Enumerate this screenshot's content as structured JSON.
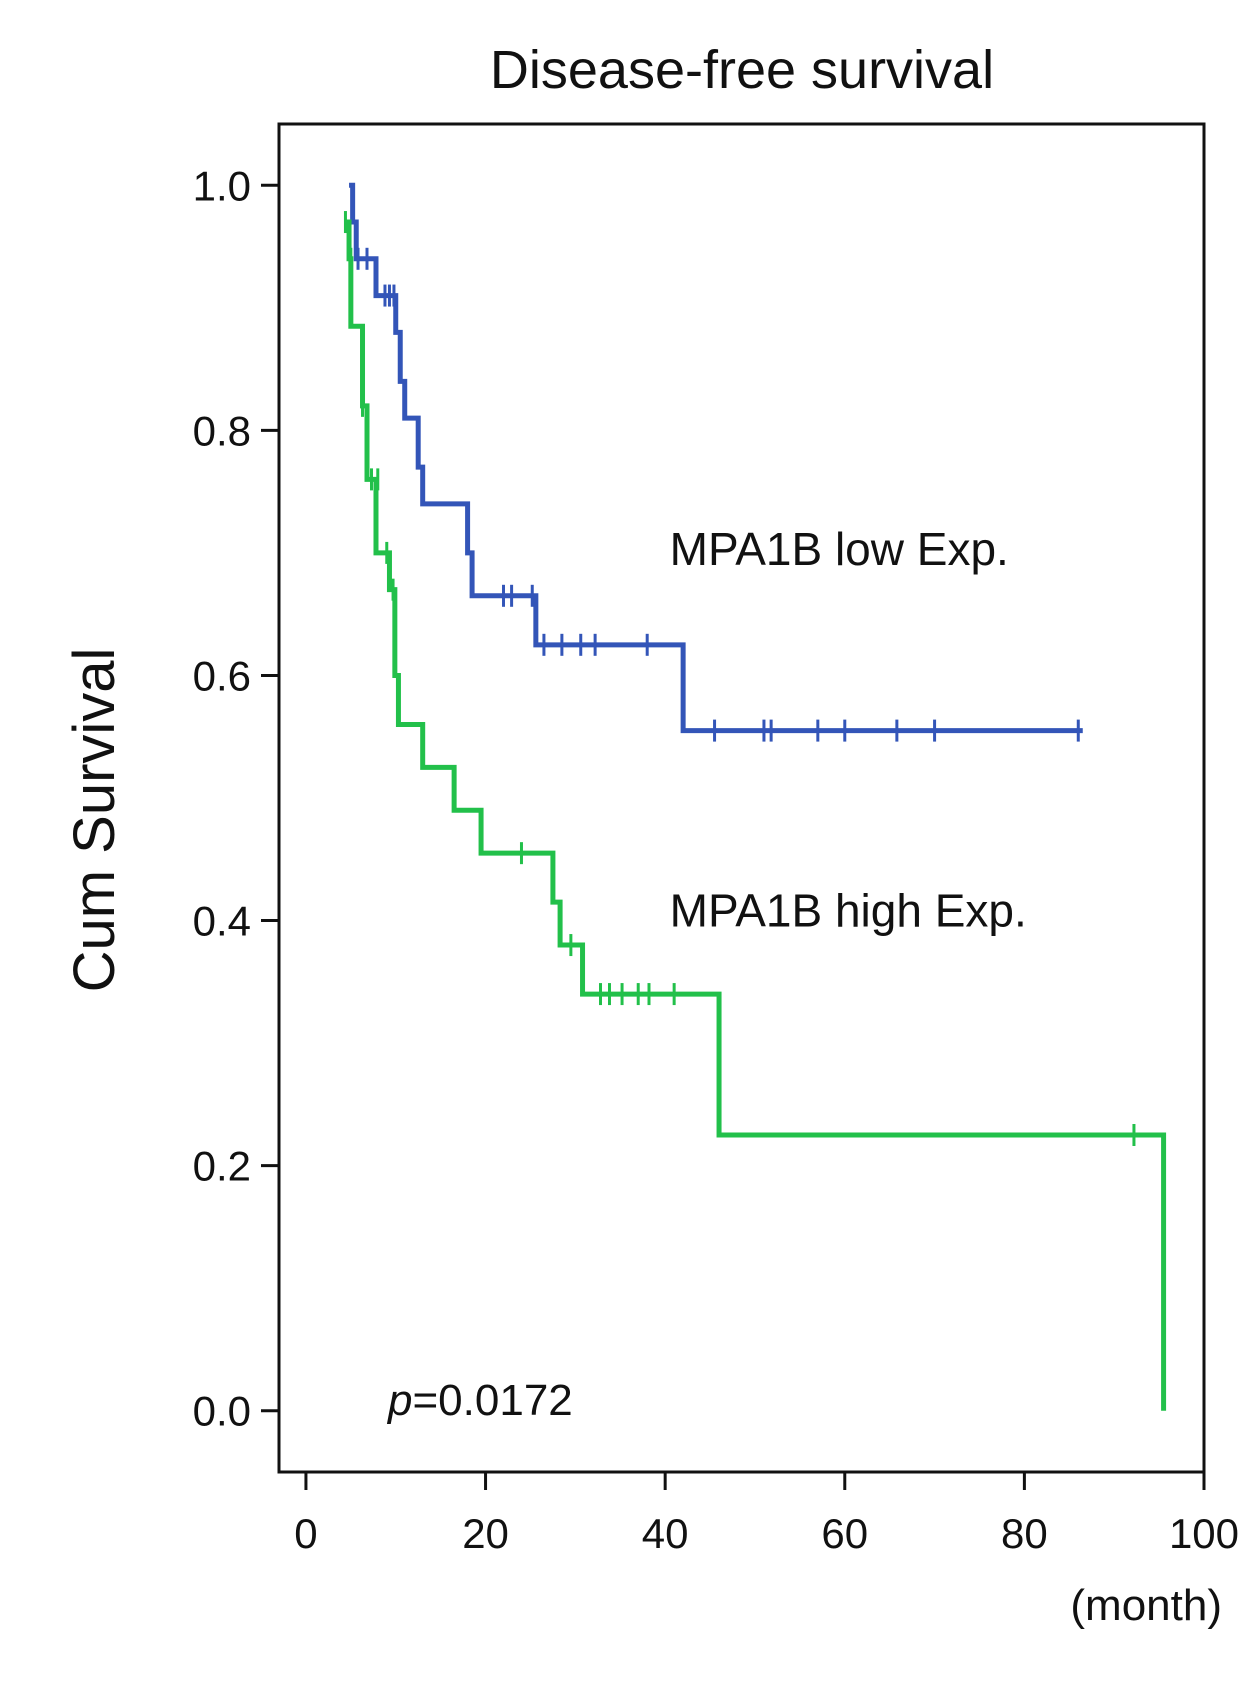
{
  "chart_data": {
    "type": "line",
    "title": "Disease-free survival",
    "ylabel": "Cum Survival",
    "xlabel": "(month)",
    "xlim": [
      -3,
      100
    ],
    "ylim": [
      -0.05,
      1.05
    ],
    "xticks": [
      0,
      20,
      40,
      60,
      80,
      100
    ],
    "xtick_labels": [
      "0",
      "20",
      "40",
      "60",
      "80",
      "100"
    ],
    "yticks": [
      0.0,
      0.2,
      0.4,
      0.6,
      0.8,
      1.0
    ],
    "ytick_labels": [
      "0.0",
      "0.2",
      "0.4",
      "0.6",
      "0.8",
      "1.0"
    ],
    "grid": false,
    "annotation": {
      "p_symbol": "p",
      "p_value": "=0.0172"
    },
    "series": [
      {
        "name": "MPA1B low Exp.",
        "color": "#3355b8",
        "label_at": [
          40.5,
          0.69
        ],
        "steps": [
          [
            4.8,
            1.0
          ],
          [
            5.2,
            0.97
          ],
          [
            5.6,
            0.94
          ],
          [
            7.8,
            0.91
          ],
          [
            10.0,
            0.88
          ],
          [
            10.5,
            0.84
          ],
          [
            11.0,
            0.81
          ],
          [
            12.5,
            0.77
          ],
          [
            13.0,
            0.74
          ],
          [
            18.0,
            0.7
          ],
          [
            18.5,
            0.665
          ],
          [
            25.6,
            0.625
          ],
          [
            42.0,
            0.555
          ],
          [
            86.5,
            0.555
          ]
        ],
        "censored": [
          [
            5.8,
            0.94
          ],
          [
            6.8,
            0.94
          ],
          [
            8.8,
            0.91
          ],
          [
            9.3,
            0.91
          ],
          [
            9.8,
            0.91
          ],
          [
            22.0,
            0.665
          ],
          [
            22.9,
            0.665
          ],
          [
            25.2,
            0.665
          ],
          [
            26.5,
            0.625
          ],
          [
            28.5,
            0.625
          ],
          [
            30.6,
            0.625
          ],
          [
            32.2,
            0.625
          ],
          [
            38.0,
            0.625
          ],
          [
            45.5,
            0.555
          ],
          [
            51.0,
            0.555
          ],
          [
            51.8,
            0.555
          ],
          [
            57.0,
            0.555
          ],
          [
            60.0,
            0.555
          ],
          [
            65.8,
            0.555
          ],
          [
            70.0,
            0.555
          ],
          [
            86.0,
            0.555
          ]
        ]
      },
      {
        "name": "MPA1B high Exp.",
        "color": "#22c04a",
        "label_at": [
          40.5,
          0.395
        ],
        "steps": [
          [
            4.5,
            0.97
          ],
          [
            4.8,
            0.94
          ],
          [
            5.0,
            0.885
          ],
          [
            6.3,
            0.82
          ],
          [
            6.8,
            0.76
          ],
          [
            7.8,
            0.7
          ],
          [
            9.3,
            0.67
          ],
          [
            9.9,
            0.6
          ],
          [
            10.3,
            0.56
          ],
          [
            13.0,
            0.525
          ],
          [
            16.5,
            0.49
          ],
          [
            19.5,
            0.455
          ],
          [
            27.5,
            0.415
          ],
          [
            28.3,
            0.38
          ],
          [
            30.8,
            0.34
          ],
          [
            46.0,
            0.225
          ],
          [
            95.5,
            0.0
          ]
        ],
        "censored": [
          [
            4.4,
            0.97
          ],
          [
            5.0,
            0.94
          ],
          [
            6.3,
            0.82
          ],
          [
            7.3,
            0.76
          ],
          [
            8.0,
            0.76
          ],
          [
            9.0,
            0.7
          ],
          [
            9.7,
            0.67
          ],
          [
            24.0,
            0.455
          ],
          [
            29.5,
            0.38
          ],
          [
            32.8,
            0.34
          ],
          [
            33.8,
            0.34
          ],
          [
            35.2,
            0.34
          ],
          [
            37.0,
            0.34
          ],
          [
            38.2,
            0.34
          ],
          [
            41.0,
            0.34
          ],
          [
            92.2,
            0.225
          ]
        ]
      }
    ]
  }
}
